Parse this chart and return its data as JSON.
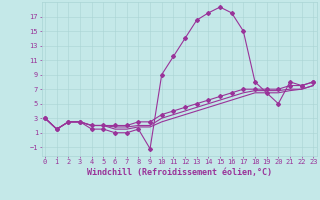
{
  "xlabel": "Windchill (Refroidissement éolien,°C)",
  "x_ticks": [
    0,
    1,
    2,
    3,
    4,
    5,
    6,
    7,
    8,
    9,
    10,
    11,
    12,
    13,
    14,
    15,
    16,
    17,
    18,
    19,
    20,
    21,
    22,
    23
  ],
  "y_ticks": [
    -1,
    1,
    3,
    5,
    7,
    9,
    11,
    13,
    15,
    17
  ],
  "xlim": [
    -0.3,
    23.3
  ],
  "ylim": [
    -2.2,
    19.0
  ],
  "bg_color": "#c4e8e8",
  "grid_color": "#aad4d4",
  "line_color": "#993399",
  "line1_x": [
    0,
    1,
    2,
    3,
    4,
    5,
    6,
    7,
    8,
    9,
    10,
    11,
    12,
    13,
    14,
    15,
    16,
    17,
    18,
    19,
    20,
    21,
    22,
    23
  ],
  "line1_y": [
    3.0,
    1.5,
    2.5,
    2.5,
    1.5,
    1.5,
    1.0,
    1.0,
    1.5,
    -1.2,
    9.0,
    11.5,
    14.0,
    16.5,
    17.5,
    18.3,
    17.5,
    15.0,
    8.0,
    6.5,
    5.0,
    8.0,
    7.5,
    8.0
  ],
  "line2_x": [
    0,
    1,
    2,
    3,
    4,
    5,
    6,
    7,
    8,
    9,
    10,
    11,
    12,
    13,
    14,
    15,
    16,
    17,
    18,
    19,
    20,
    21,
    22,
    23
  ],
  "line2_y": [
    3.0,
    1.5,
    2.5,
    2.5,
    2.0,
    2.0,
    2.0,
    2.0,
    2.5,
    2.5,
    3.5,
    4.0,
    4.5,
    5.0,
    5.5,
    6.0,
    6.5,
    7.0,
    7.0,
    7.0,
    7.0,
    7.5,
    7.5,
    8.0
  ],
  "line3_x": [
    0,
    1,
    2,
    3,
    4,
    5,
    6,
    7,
    8,
    9,
    10,
    11,
    12,
    13,
    14,
    15,
    16,
    17,
    18,
    19,
    20,
    21,
    22,
    23
  ],
  "line3_y": [
    3.0,
    1.5,
    2.5,
    2.5,
    2.0,
    2.0,
    1.8,
    1.8,
    2.0,
    2.0,
    3.0,
    3.5,
    4.0,
    4.5,
    5.0,
    5.5,
    6.0,
    6.5,
    6.8,
    6.8,
    6.8,
    7.0,
    7.0,
    7.5
  ],
  "line4_x": [
    0,
    1,
    2,
    3,
    4,
    5,
    6,
    7,
    8,
    9,
    10,
    11,
    12,
    13,
    14,
    15,
    16,
    17,
    18,
    19,
    20,
    21,
    22,
    23
  ],
  "line4_y": [
    3.0,
    1.5,
    2.5,
    2.5,
    2.0,
    2.0,
    1.5,
    1.5,
    1.8,
    1.8,
    2.5,
    3.0,
    3.5,
    4.0,
    4.5,
    5.0,
    5.5,
    6.0,
    6.5,
    6.5,
    6.5,
    6.8,
    7.0,
    7.5
  ],
  "marker_size": 2.0,
  "line_width": 0.8,
  "tick_fontsize": 5.0,
  "label_fontsize": 6.0
}
